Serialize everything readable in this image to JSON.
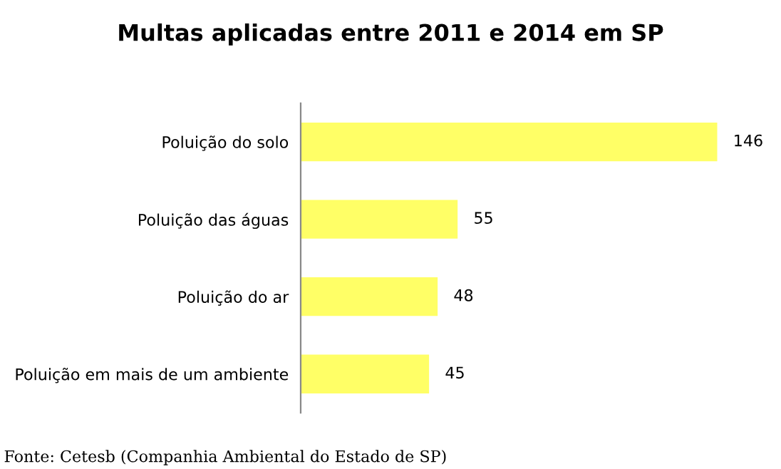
{
  "chart_data": {
    "type": "bar",
    "orientation": "horizontal",
    "title": "Multas aplicadas entre 2011 e 2014 em SP",
    "categories": [
      "Poluição do solo",
      "Poluição das águas",
      "Poluição do ar",
      "Poluição em mais de um ambiente"
    ],
    "values": [
      146,
      55,
      48,
      45
    ],
    "color": "#ffff66",
    "data_labels": true,
    "grid": false,
    "legend": false,
    "tick_labels": "y",
    "annotations": [
      "Fonte: Cetesb (Companhia Ambiental do Estado de SP)"
    ]
  }
}
